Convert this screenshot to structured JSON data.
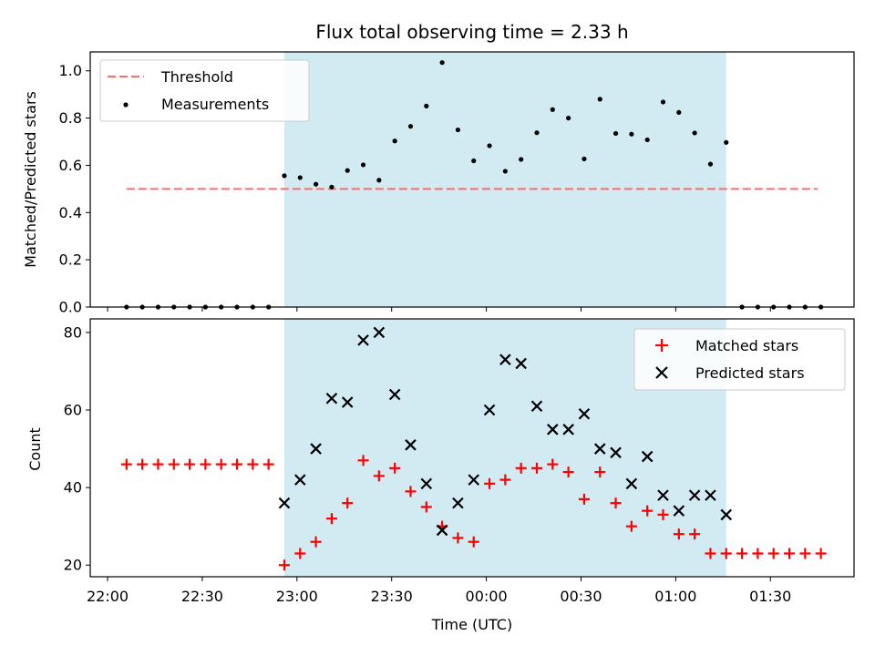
{
  "chart_data": {
    "type": "scatter",
    "title": "Flux total observing time = 2.33 h",
    "xlabel": "Time (UTC)",
    "x_ticks": [
      "22:00",
      "22:30",
      "23:00",
      "23:30",
      "00:00",
      "00:30",
      "01:00",
      "01:30"
    ],
    "x_tick_minutes": [
      0,
      30,
      60,
      90,
      120,
      150,
      180,
      210
    ],
    "xlim_minutes_since_2200": [
      -5.5,
      236.5
    ],
    "shaded_interval_minutes": [
      56,
      196
    ],
    "shade_color": "#add8e6",
    "panels": [
      {
        "ylabel": "Matched/Predicted stars",
        "ylim": [
          0,
          1.08
        ],
        "y_ticks": [
          0.0,
          0.2,
          0.4,
          0.6,
          0.8,
          1.0
        ],
        "y_tick_labels": [
          "0.0",
          "0.2",
          "0.4",
          "0.6",
          "0.8",
          "1.0"
        ],
        "legend_position": "top-left",
        "legend": [
          {
            "label": "Threshold",
            "type": "dashed-line",
            "color": "#ff6b6b"
          },
          {
            "label": "Measurements",
            "type": "dot",
            "color": "#000000"
          }
        ],
        "threshold": {
          "name": "Threshold",
          "y": 0.5,
          "x_range_minutes": [
            6,
            225
          ],
          "color": "#ff6b6b"
        },
        "series": [
          {
            "name": "Measurements",
            "marker": "dot",
            "color": "#000000",
            "x_minutes": [
              6,
              11,
              16,
              21,
              26,
              31,
              36,
              41,
              46,
              51,
              56,
              61,
              66,
              71,
              76,
              81,
              86,
              91,
              96,
              101,
              106,
              111,
              116,
              121,
              126,
              131,
              136,
              141,
              146,
              151,
              156,
              161,
              166,
              171,
              176,
              181,
              186,
              191,
              196,
              201,
              206,
              211,
              216,
              221,
              226
            ],
            "y": [
              0,
              0,
              0,
              0,
              0,
              0,
              0,
              0,
              0,
              0,
              0.556,
              0.548,
              0.52,
              0.508,
              0.578,
              0.602,
              0.537,
              0.703,
              0.765,
              0.851,
              1.035,
              0.75,
              0.619,
              0.683,
              0.575,
              0.625,
              0.738,
              0.836,
              0.8,
              0.627,
              0.88,
              0.735,
              0.732,
              0.708,
              0.868,
              0.824,
              0.737,
              0.605,
              0.697,
              0,
              0,
              0,
              0,
              0,
              0
            ]
          }
        ]
      },
      {
        "ylabel": "Count",
        "ylim": [
          17,
          83.5
        ],
        "y_ticks": [
          20,
          40,
          60,
          80
        ],
        "y_tick_labels": [
          "20",
          "40",
          "60",
          "80"
        ],
        "legend_position": "top-right",
        "legend": [
          {
            "label": "Matched stars",
            "type": "plus",
            "color": "#ff0000"
          },
          {
            "label": "Predicted stars",
            "type": "x",
            "color": "#000000"
          }
        ],
        "series": [
          {
            "name": "Matched stars",
            "marker": "plus",
            "color": "#ff0000",
            "x_minutes": [
              6,
              11,
              16,
              21,
              26,
              31,
              36,
              41,
              46,
              51,
              56,
              61,
              66,
              71,
              76,
              81,
              86,
              91,
              96,
              101,
              106,
              111,
              116,
              121,
              126,
              131,
              136,
              141,
              146,
              151,
              156,
              161,
              166,
              171,
              176,
              181,
              186,
              191,
              196,
              201,
              206,
              211,
              216,
              221,
              226
            ],
            "y": [
              46,
              46,
              46,
              46,
              46,
              46,
              46,
              46,
              46,
              46,
              20,
              23,
              26,
              32,
              36,
              47,
              43,
              45,
              39,
              35,
              30,
              27,
              26,
              41,
              42,
              45,
              45,
              46,
              44,
              37,
              44,
              36,
              30,
              34,
              33,
              28,
              28,
              23,
              23,
              23,
              23,
              23,
              23,
              23,
              23
            ]
          },
          {
            "name": "Predicted stars",
            "marker": "x",
            "color": "#000000",
            "x_minutes": [
              56,
              61,
              66,
              71,
              76,
              81,
              86,
              91,
              96,
              101,
              106,
              111,
              116,
              121,
              126,
              131,
              136,
              141,
              146,
              151,
              156,
              161,
              166,
              171,
              176,
              181,
              186,
              191,
              196
            ],
            "y": [
              36,
              42,
              50,
              63,
              62,
              78,
              80,
              64,
              51,
              41,
              29,
              36,
              42,
              60,
              73,
              72,
              61,
              55,
              55,
              59,
              50,
              49,
              41,
              48,
              38,
              34,
              38,
              38,
              33
            ]
          }
        ]
      }
    ]
  }
}
